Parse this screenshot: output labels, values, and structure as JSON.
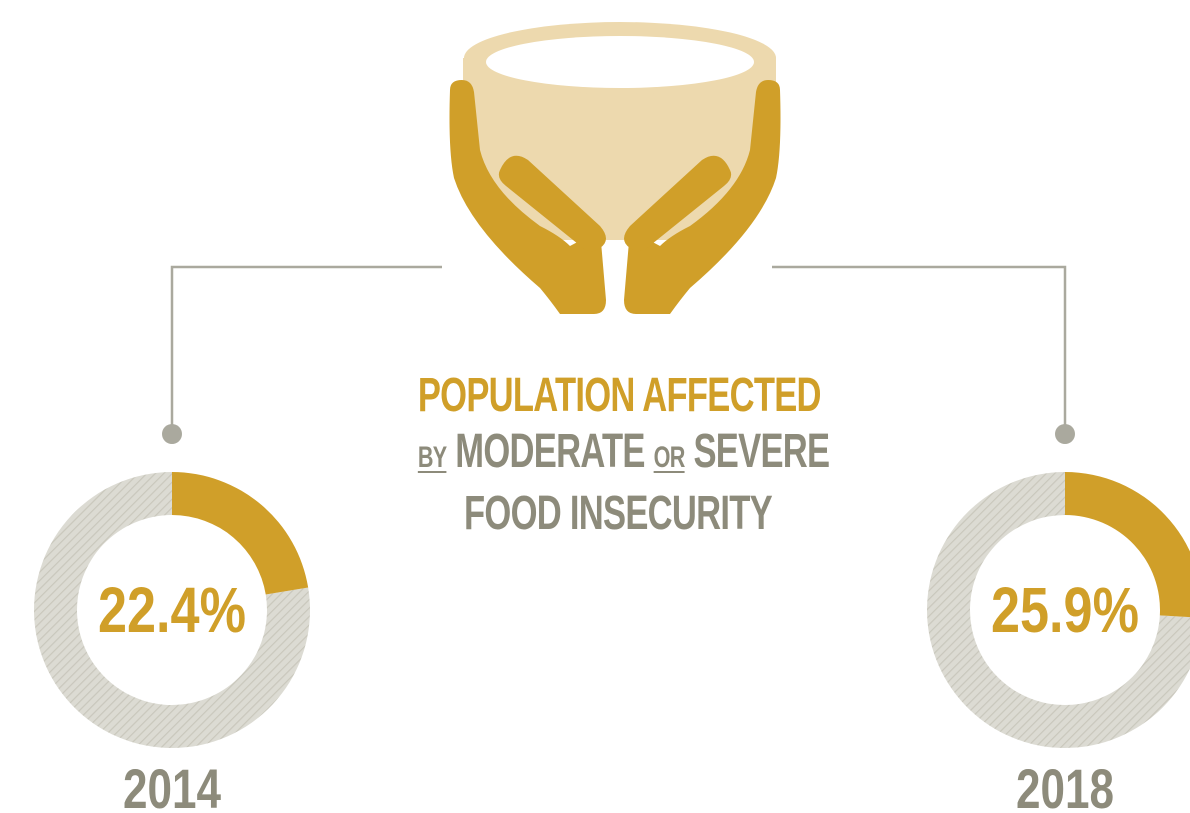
{
  "title": {
    "line1": "POPULATION AFFECTED",
    "by": "BY",
    "moderate": "MODERATE",
    "or": "OR",
    "severe": "SEVERE",
    "line3": "FOOD INSECURITY"
  },
  "colors": {
    "gold": "#D09F29",
    "grey_text": "#8D8B7B",
    "ring_grey": "#DCDBD3",
    "hatch": "#C9C7BC",
    "connector": "#AAA99E",
    "bowl": "#EDD9AE"
  },
  "chart_data": {
    "type": "pie",
    "style": "donut",
    "title": "POPULATION AFFECTED BY MODERATE OR SEVERE FOOD INSECURITY",
    "series": [
      {
        "year": "2014",
        "value": 22.4,
        "label": "22.4%"
      },
      {
        "year": "2018",
        "value": 25.9,
        "label": "25.9%"
      }
    ]
  },
  "icon": "hands-holding-bowl-icon"
}
